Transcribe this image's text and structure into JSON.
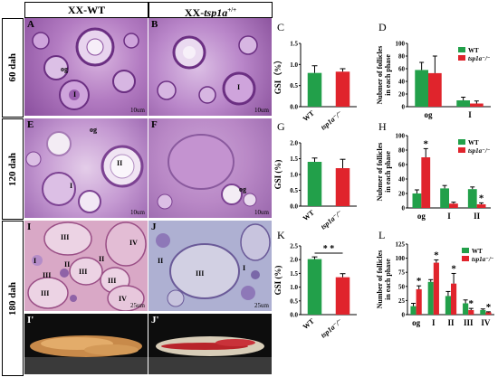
{
  "headers": {
    "wt": "XX-WT",
    "mut_prefix": "XX-",
    "mut_gene": "tsp1a",
    "mut_sup": "+/+"
  },
  "rows": [
    "60 dah",
    "120 dah",
    "180 dah"
  ],
  "panels": {
    "A": {
      "letter": "A",
      "scale": "10um",
      "labels": [
        "og",
        "I"
      ]
    },
    "B": {
      "letter": "B",
      "scale": "10um",
      "labels": [
        "I"
      ]
    },
    "E": {
      "letter": "E",
      "scale": "10um",
      "labels": [
        "og",
        "I",
        "II"
      ]
    },
    "F": {
      "letter": "F",
      "scale": "10um",
      "labels": [
        "og"
      ]
    },
    "I": {
      "letter": "I",
      "scale": "25um",
      "labels": [
        "III",
        "III",
        "III",
        "III",
        "III",
        "IV",
        "IV",
        "II",
        "I",
        "II"
      ]
    },
    "J": {
      "letter": "J",
      "scale": "25um",
      "labels": [
        "III",
        "II",
        "I"
      ]
    },
    "Ip": {
      "letter": "I'"
    },
    "Jp": {
      "letter": "J'"
    }
  },
  "colors": {
    "wt": "#22a04a",
    "mut": "#e0242c",
    "frame": "#000000"
  },
  "chart_data": [
    {
      "id": "C",
      "type": "bar",
      "letter": "C",
      "ylabel": "GSI（%）",
      "ylim": [
        0,
        1.5
      ],
      "yticks": [
        "0.0",
        "0.5",
        "1.0",
        "1.5"
      ],
      "categories": [
        "WT",
        "tsp1a⁻/⁻"
      ],
      "values": [
        0.8,
        0.83
      ],
      "errors": [
        0.17,
        0.07
      ]
    },
    {
      "id": "D",
      "type": "bar",
      "letter": "D",
      "ylabel": "Nubmer of follicles in each phase",
      "ylim": [
        0,
        100
      ],
      "yticks": [
        "0",
        "20",
        "40",
        "60",
        "80",
        "100"
      ],
      "categories": [
        "og",
        "I"
      ],
      "series": [
        {
          "name": "WT",
          "values": [
            58,
            10
          ],
          "errors": [
            12,
            5
          ]
        },
        {
          "name": "tsp1a⁻/⁻",
          "values": [
            53,
            5
          ],
          "errors": [
            27,
            4
          ]
        }
      ],
      "stars": []
    },
    {
      "id": "G",
      "type": "bar",
      "letter": "G",
      "ylabel": "GSI (%)",
      "ylim": [
        0,
        2.0
      ],
      "yticks": [
        "0.0",
        "0.5",
        "1.0",
        "1.5",
        "2.0"
      ],
      "categories": [
        "WT",
        "tsp1a⁻/⁻"
      ],
      "values": [
        1.4,
        1.2
      ],
      "errors": [
        0.12,
        0.28
      ]
    },
    {
      "id": "H",
      "type": "bar",
      "letter": "H",
      "ylabel": "Nubmer of follicles in each phase",
      "ylim": [
        0,
        100
      ],
      "yticks": [
        "0",
        "20",
        "40",
        "60",
        "80",
        "100"
      ],
      "categories": [
        "og",
        "I",
        "II"
      ],
      "series": [
        {
          "name": "WT",
          "values": [
            20,
            27,
            26
          ],
          "errors": [
            5,
            4,
            3
          ]
        },
        {
          "name": "tsp1a⁻/⁻",
          "values": [
            70,
            6,
            5
          ],
          "errors": [
            12,
            2,
            2
          ]
        }
      ],
      "stars": [
        {
          "cat": 0,
          "series": 1
        },
        {
          "cat": 2,
          "series": 1
        }
      ]
    },
    {
      "id": "K",
      "type": "bar",
      "letter": "K",
      "ylabel": "GSI (%)",
      "ylim": [
        0,
        2.5
      ],
      "yticks": [
        "0.0",
        "0.5",
        "1.0",
        "1.5",
        "2.0",
        "2.5"
      ],
      "categories": [
        "WT",
        "tsp1a⁻/⁻"
      ],
      "values": [
        2.02,
        1.36
      ],
      "errors": [
        0.08,
        0.13
      ],
      "sig": "* *"
    },
    {
      "id": "L",
      "type": "bar",
      "letter": "L",
      "ylabel": "Number of follicles in each phase",
      "ylim": [
        0,
        125
      ],
      "yticks": [
        "0",
        "25",
        "50",
        "75",
        "100",
        "125"
      ],
      "categories": [
        "og",
        "I",
        "II",
        "III",
        "IV"
      ],
      "series": [
        {
          "name": "WT",
          "values": [
            15,
            58,
            33,
            20,
            8
          ],
          "errors": [
            5,
            4,
            8,
            6,
            2
          ]
        },
        {
          "name": "tsp1a⁻/⁻",
          "values": [
            45,
            92,
            55,
            8,
            4
          ],
          "errors": [
            6,
            5,
            18,
            3,
            1
          ]
        }
      ],
      "stars": [
        {
          "cat": 0,
          "series": 1
        },
        {
          "cat": 1,
          "series": 1
        },
        {
          "cat": 2,
          "series": 1
        },
        {
          "cat": 3,
          "series": 1
        },
        {
          "cat": 4,
          "series": 1
        }
      ]
    }
  ]
}
